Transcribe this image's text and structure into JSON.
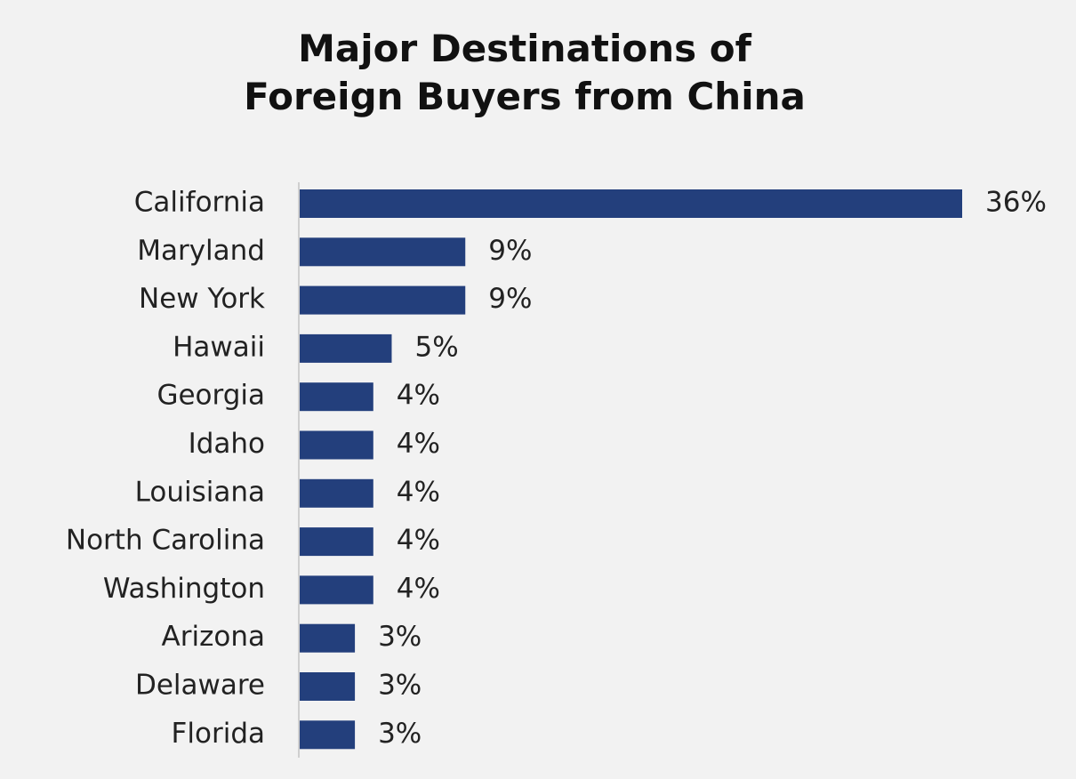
{
  "chart_data": {
    "type": "barh",
    "title": "Major Destinations of Foreign Buyers from China",
    "categories": [
      "California",
      "Maryland",
      "New York",
      "Hawaii",
      "Georgia",
      "Idaho",
      "Louisiana",
      "North Carolina",
      "Washington",
      "Arizona",
      "Delaware",
      "Florida"
    ],
    "values": [
      36,
      9,
      9,
      5,
      4,
      4,
      4,
      4,
      4,
      3,
      3,
      3
    ],
    "value_labels": [
      "36%",
      "9%",
      "9%",
      "5%",
      "4%",
      "4%",
      "4%",
      "4%",
      "4%",
      "3%",
      "3%",
      "3%"
    ],
    "color": "#233f7c"
  }
}
